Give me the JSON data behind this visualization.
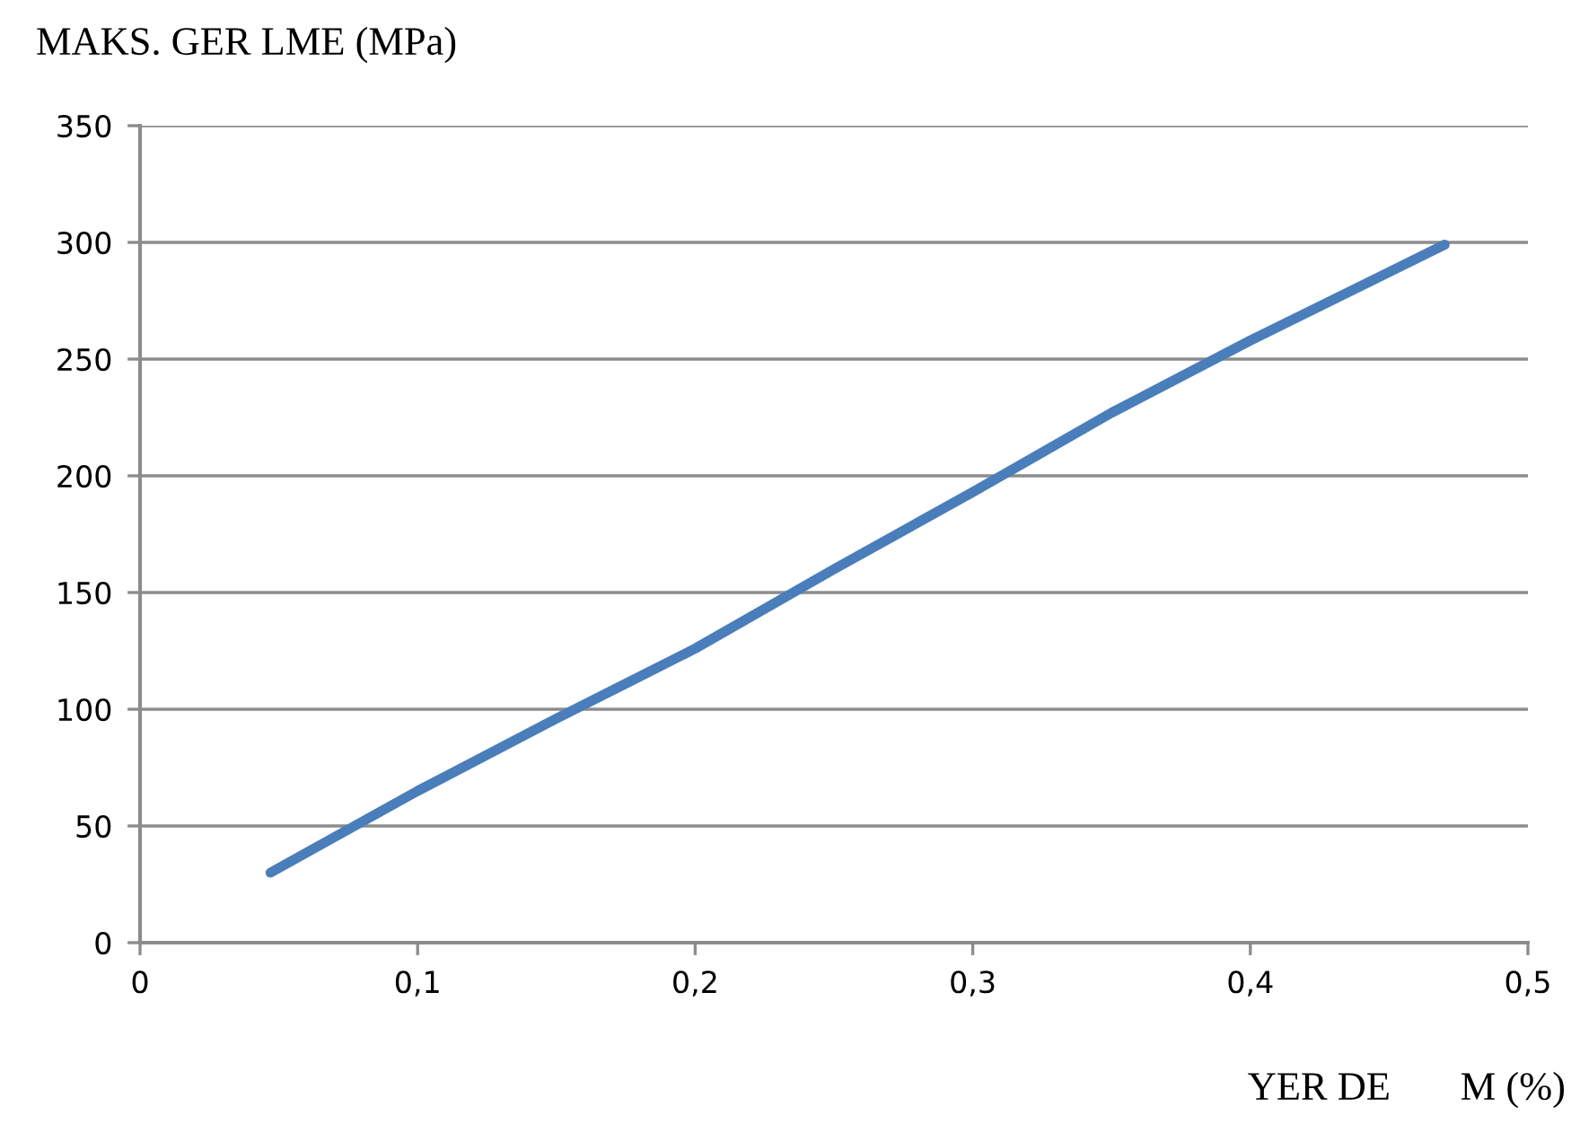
{
  "chart_data": {
    "type": "line",
    "xlabel": "YER DE       M (%)",
    "ylabel": "MAKS. GER LME (MPa)",
    "x": [
      0.047,
      0.1,
      0.15,
      0.2,
      0.25,
      0.3,
      0.35,
      0.4,
      0.47
    ],
    "series": [
      {
        "color": "#4a7ebb",
        "values": [
          30,
          65,
          96,
          126,
          160,
          193,
          227,
          258,
          299
        ]
      }
    ],
    "xlim": [
      0,
      0.5
    ],
    "xticks": [
      0,
      {
        "value": 0.1,
        "label": "0,1"
      },
      {
        "value": 0.2,
        "label": "0,2"
      },
      {
        "value": 0.3,
        "label": "0,3"
      },
      {
        "value": 0.4,
        "label": "0,4"
      },
      {
        "value": 0.5,
        "label": "0,5"
      }
    ],
    "ylim": [
      0,
      350
    ],
    "yticks": [
      0,
      50,
      100,
      150,
      200,
      250,
      300,
      350
    ],
    "grid": "y",
    "marker": "none",
    "line_style": "solid"
  }
}
